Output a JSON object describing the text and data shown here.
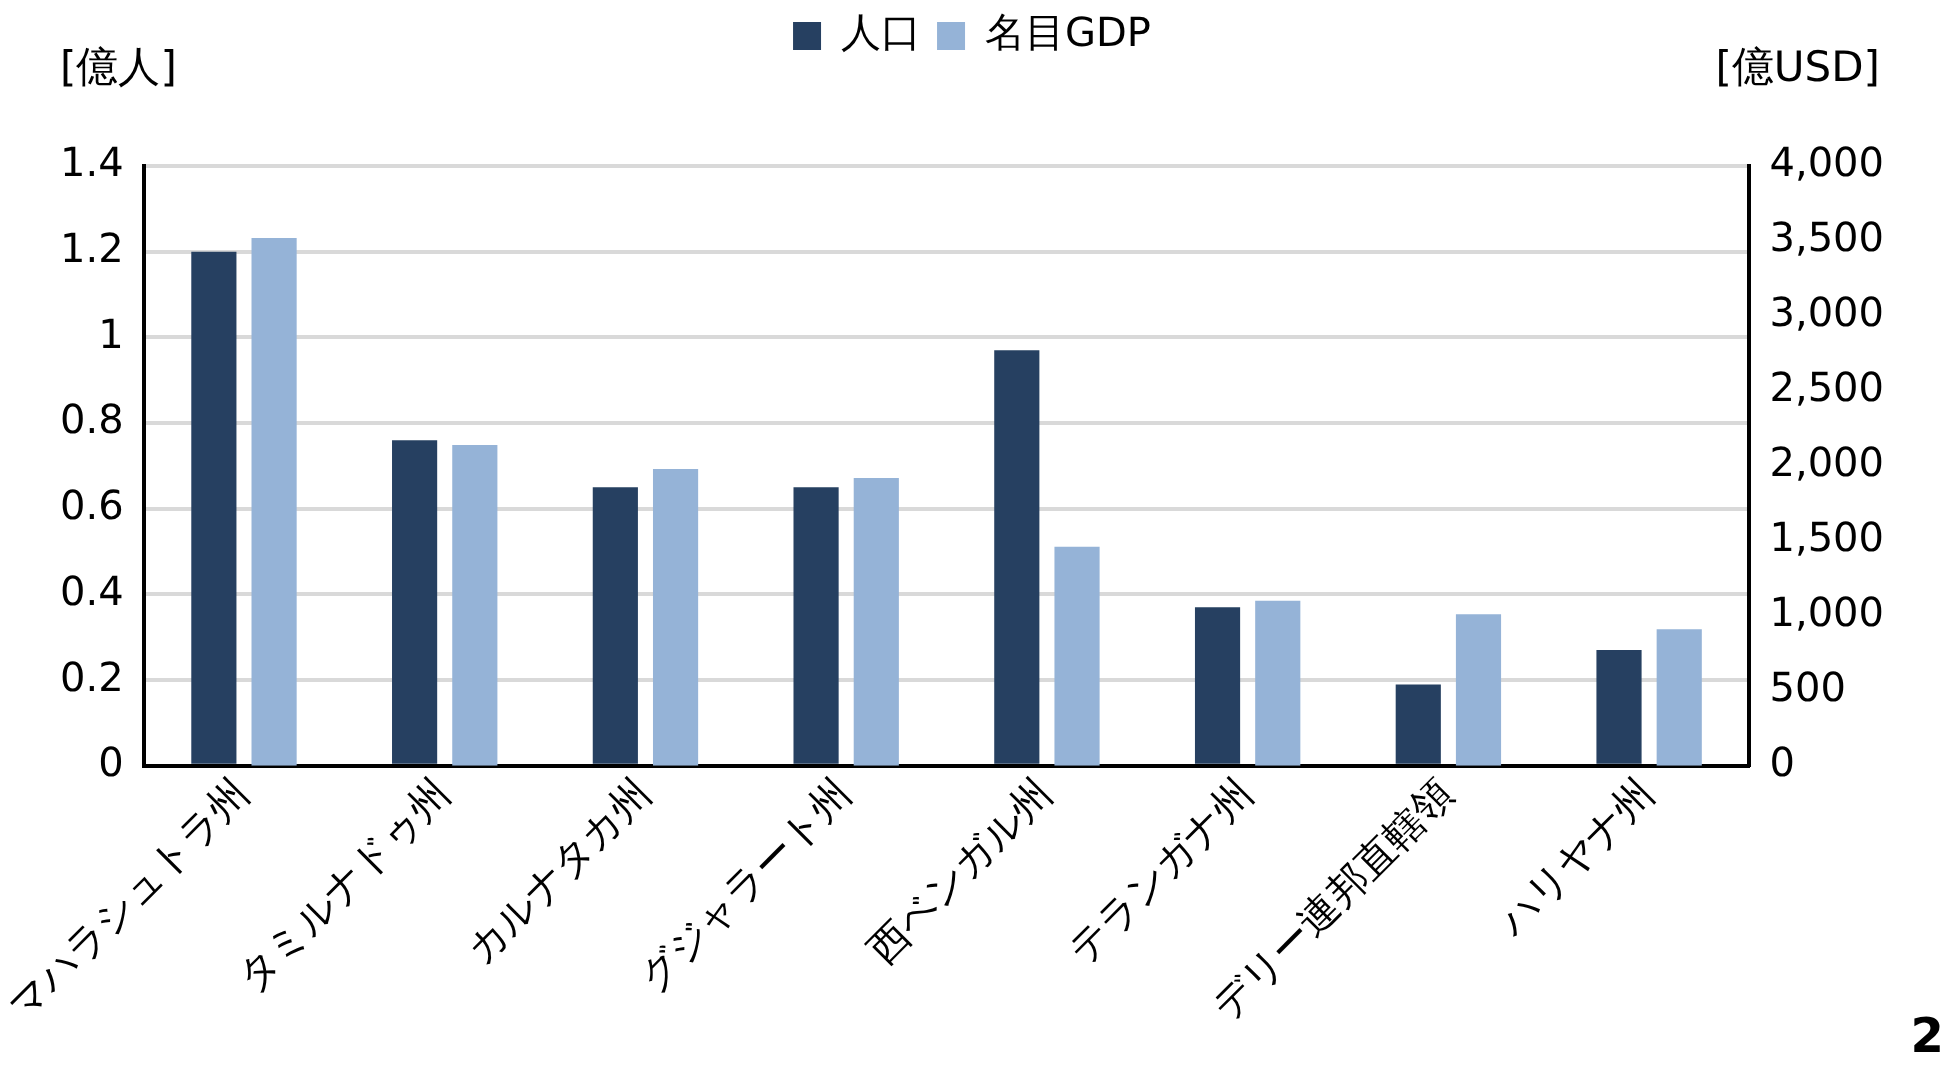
{
  "chart_data": {
    "type": "bar",
    "ylabel": "[億人]",
    "y2label": "[億USD]",
    "categories": [
      "マハラシュトラ州",
      "タミルナドゥ州",
      "カルナタカ州",
      "グジャラート州",
      "西ベンガル州",
      "テランガナ州",
      "デリー連邦直轄領",
      "ハリヤナ州"
    ],
    "series": [
      {
        "name": "人口",
        "color": "#264061",
        "values": [
          1.2,
          0.76,
          0.65,
          0.65,
          0.97,
          0.37,
          0.19,
          0.27
        ]
      },
      {
        "name": "名目GDP",
        "color": "#95b3d7",
        "axis": "y2",
        "values": [
          3520,
          2140,
          1980,
          1920,
          1460,
          1100,
          1010,
          910
        ]
      }
    ],
    "ylim": [
      0,
      1.4
    ],
    "yticks": [
      0,
      0.2,
      0.4,
      0.6,
      0.8,
      1,
      1.2,
      1.4
    ],
    "y2lim": [
      0,
      4000
    ],
    "y2ticks": [
      0,
      {
        "value": 500,
        "label": "500"
      },
      {
        "value": 1000,
        "label": "1,000"
      },
      {
        "value": 1500,
        "label": "1,500"
      },
      {
        "value": 2000,
        "label": "2,000"
      },
      {
        "value": 2500,
        "label": "2,500"
      },
      {
        "value": 3000,
        "label": "3,000"
      },
      {
        "value": 3500,
        "label": "3,500"
      },
      {
        "value": 4000,
        "label": "4,000"
      }
    ],
    "grid": "y",
    "legend": "top",
    "annotations": [
      "2"
    ]
  }
}
